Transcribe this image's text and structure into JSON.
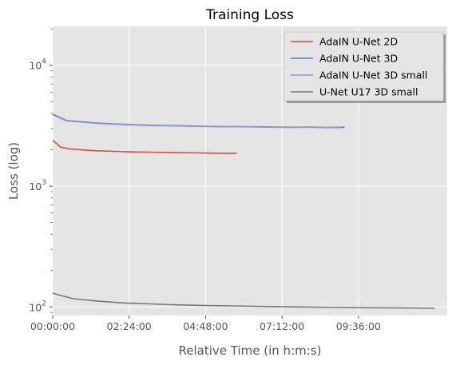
{
  "chart_data": {
    "type": "line",
    "title": "Training Loss",
    "xlabel": "Relative Time (in h:m:s)",
    "ylabel": "Loss (log)",
    "yscale": "log",
    "xlim_seconds": [
      0,
      44600
    ],
    "ylim": [
      85,
      21000
    ],
    "grid": true,
    "legend_position": "top-right",
    "x_ticks": [
      {
        "value": 0,
        "label": "00:00:00"
      },
      {
        "value": 8640,
        "label": "02:24:00"
      },
      {
        "value": 17280,
        "label": "04:48:00"
      },
      {
        "value": 25920,
        "label": "07:12:00"
      },
      {
        "value": 34560,
        "label": "09:36:00"
      }
    ],
    "y_ticks": [
      {
        "value": 100,
        "label_base": "10",
        "label_exp": "2"
      },
      {
        "value": 1000,
        "label_base": "10",
        "label_exp": "3"
      },
      {
        "value": 10000,
        "label_base": "10",
        "label_exp": "4"
      }
    ],
    "series": [
      {
        "name": "AdaIN U-Net 2D",
        "color": "#E24A33",
        "x": [
          0,
          900,
          2000,
          3500,
          5000,
          7000,
          9000,
          11000,
          13000,
          15000,
          17000,
          19000,
          20800
        ],
        "y": [
          2400,
          2100,
          2030,
          1990,
          1960,
          1940,
          1920,
          1910,
          1900,
          1890,
          1880,
          1870,
          1870
        ]
      },
      {
        "name": "AdaIN U-Net 3D",
        "color": "#348ABD",
        "x": [
          0,
          1600,
          3000,
          5000,
          7000,
          9000,
          11000,
          13000,
          15000,
          17000,
          19000,
          21000,
          23000,
          25000,
          27000,
          29000,
          31000,
          33000
        ],
        "y": [
          3950,
          3480,
          3420,
          3330,
          3270,
          3230,
          3190,
          3170,
          3150,
          3130,
          3110,
          3110,
          3100,
          3080,
          3070,
          3080,
          3060,
          3070
        ]
      },
      {
        "name": "AdaIN U-Net 3D small",
        "color": "#988ED5",
        "x": [
          0,
          1600,
          3000,
          5000,
          7000,
          9000,
          11000,
          13000,
          15000,
          17000,
          19000,
          21000,
          23000,
          25000,
          27000,
          29000,
          31000,
          32600
        ],
        "y": [
          3900,
          3460,
          3400,
          3310,
          3250,
          3210,
          3170,
          3160,
          3140,
          3120,
          3100,
          3100,
          3090,
          3070,
          3060,
          3070,
          3050,
          3050
        ]
      },
      {
        "name": "U-Net U17 3D small",
        "color": "#777777",
        "x": [
          0,
          2300,
          5000,
          8000,
          11000,
          14000,
          17000,
          20000,
          24000,
          28000,
          32000,
          36000,
          40000,
          43200
        ],
        "y": [
          130,
          117,
          112,
          108,
          106,
          104,
          103,
          102,
          101,
          100,
          99,
          98.5,
          98,
          97.5
        ]
      }
    ]
  }
}
